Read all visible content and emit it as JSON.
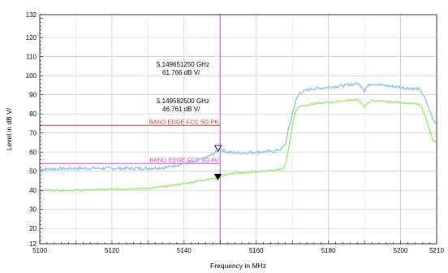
{
  "chart_data": {
    "type": "line",
    "title": "",
    "xlabel": "Frequency in MHz",
    "ylabel": "Level in dB   V/",
    "xlim": [
      5100,
      5210
    ],
    "ylim": [
      12,
      132
    ],
    "x_ticks": [
      5100,
      5120,
      5140,
      5160,
      5180,
      5200,
      5210
    ],
    "x_tick_labels": [
      "5100",
      "5120",
      "5140",
      "5160",
      "5180",
      "5200",
      "5210"
    ],
    "y_ticks": [
      12,
      20,
      30,
      40,
      50,
      60,
      70,
      80,
      90,
      100,
      110,
      120,
      132
    ],
    "y_tick_labels": [
      "12",
      "20",
      "30",
      "40",
      "50",
      "60",
      "70",
      "80",
      "90",
      "100",
      "110",
      "120",
      "132"
    ],
    "grid": true,
    "series": [
      {
        "color": "#8fbff0",
        "x": [
          5100,
          5110,
          5120,
          5130,
          5135,
          5140,
          5143,
          5146,
          5149,
          5150,
          5152,
          5155,
          5160,
          5165,
          5167,
          5168,
          5169,
          5170,
          5171,
          5172,
          5175,
          5180,
          5185,
          5188,
          5189.5,
          5190,
          5190.5,
          5192,
          5195,
          5200,
          5205,
          5206,
          5207,
          5208,
          5209,
          5210
        ],
        "y": [
          51,
          51.5,
          51.5,
          51.5,
          52,
          54,
          55,
          57,
          60,
          61.5,
          60,
          59.5,
          60,
          60.5,
          61.5,
          64,
          72,
          80,
          87,
          91,
          93,
          94,
          95,
          96,
          94,
          92,
          94,
          96,
          95,
          94,
          93,
          91,
          87,
          82,
          77,
          75
        ]
      },
      {
        "color": "#90ee60",
        "x": [
          5100,
          5110,
          5120,
          5130,
          5135,
          5140,
          5143,
          5146,
          5149,
          5150,
          5152,
          5155,
          5160,
          5165,
          5167,
          5168,
          5169,
          5170,
          5171,
          5172,
          5175,
          5180,
          5185,
          5188,
          5189.5,
          5190,
          5190.5,
          5192,
          5195,
          5200,
          5205,
          5206,
          5207,
          5208,
          5209,
          5210
        ],
        "y": [
          40,
          40,
          40.5,
          41,
          42,
          43.5,
          44.5,
          45.5,
          46.5,
          47,
          48.5,
          49,
          49.5,
          50.5,
          51,
          53,
          62,
          74,
          82,
          84,
          85,
          86,
          87,
          87.5,
          85,
          83,
          85,
          87,
          86.5,
          86,
          85,
          83,
          78,
          72,
          66,
          65
        ]
      }
    ],
    "limit_lines": [
      {
        "label": "BAND EDGE  FCC 5G PK",
        "y": 74,
        "x_end": 5150,
        "color": "#d93a3a"
      },
      {
        "label": "BAND EDGE  FCC 5G AV",
        "y": 54,
        "x_end": 5150,
        "color": "#e040e0"
      }
    ],
    "vertical_line": {
      "x": 5150,
      "color": "#e040e0"
    },
    "markers": [
      {
        "x": 5149.65,
        "y": 61.766,
        "style": "open",
        "freq_text": "5.149651250 GHz",
        "level_text": "61.766 dB   V/"
      },
      {
        "x": 5149.58,
        "y": 46.761,
        "style": "filled",
        "freq_text": "5.149582500 GHz",
        "level_text": "46.761 dB   V/"
      }
    ]
  }
}
